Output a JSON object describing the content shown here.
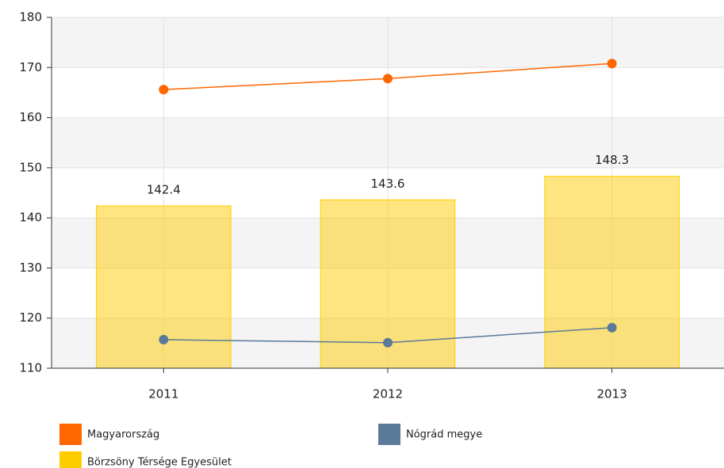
{
  "chart_data": {
    "type": "combo",
    "categories": [
      "2011",
      "2012",
      "2013"
    ],
    "series": [
      {
        "name": "Magyarország",
        "type": "line",
        "color": "#ff6600",
        "values": [
          165.6,
          167.8,
          170.8
        ]
      },
      {
        "name": "Nógrád megye",
        "type": "line",
        "color": "#5b7a9a",
        "values": [
          115.7,
          115.1,
          118.1
        ]
      },
      {
        "name": "Börzsöny Térsége Egyesület",
        "type": "bar",
        "color": "#ffcc00",
        "values": [
          142.4,
          143.6,
          148.3
        ]
      }
    ],
    "ylim": [
      110,
      180
    ],
    "yticks": [
      110,
      120,
      130,
      140,
      150,
      160,
      170,
      180
    ],
    "grid": true
  }
}
